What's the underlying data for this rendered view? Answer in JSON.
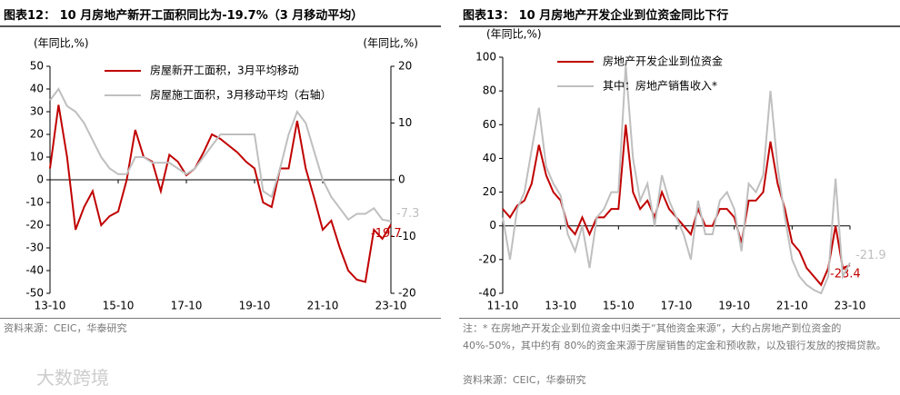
{
  "chart_data": [
    {
      "type": "line",
      "title": "图表12： 10 月房地产新开工面积同比为-19.7%（3 月移动平均）",
      "ylabel": "(年同比,%)",
      "y2label": "(年同比,%)",
      "categories": [
        "13-10",
        null,
        null,
        null,
        null,
        null,
        null,
        null,
        "15-10",
        null,
        null,
        null,
        null,
        null,
        null,
        null,
        "17-10",
        null,
        null,
        null,
        null,
        null,
        null,
        null,
        "19-10",
        null,
        null,
        null,
        null,
        null,
        null,
        null,
        "21-10",
        null,
        null,
        null,
        null,
        null,
        null,
        null,
        "23-10"
      ],
      "ylim": [
        -50,
        50
      ],
      "yticks": [
        -50,
        -40,
        -30,
        -20,
        -10,
        0,
        10,
        20,
        30,
        40,
        50
      ],
      "y2lim": [
        -20,
        20
      ],
      "y2ticks": [
        -20,
        -10,
        0,
        10,
        20
      ],
      "series": [
        {
          "name": "房屋新开工面积，3月平均移动",
          "color": "#c00000",
          "values": [
            5,
            33,
            10,
            -22,
            -12,
            -5,
            -20,
            -16,
            -14,
            0,
            22,
            10,
            8,
            -5,
            11,
            8,
            2,
            5,
            12,
            20,
            18,
            15,
            12,
            8,
            5,
            -10,
            -12,
            5,
            5,
            26,
            5,
            -8,
            -22,
            -18,
            -30,
            -40,
            -44,
            -45,
            -22,
            -26,
            -19.7
          ]
        },
        {
          "name": "房屋施工面积，3月移动平均（右轴）",
          "color": "#bfbfbf",
          "axis": "y2",
          "values": [
            14,
            16,
            13,
            12,
            10,
            7,
            4,
            2,
            1,
            1,
            4,
            4,
            3,
            3,
            3,
            2,
            1,
            2,
            4,
            6,
            8,
            8,
            8,
            8,
            8,
            -2,
            -3,
            2,
            8,
            12,
            10,
            5,
            0,
            -3,
            -5,
            -7,
            -6,
            -6,
            -5,
            -7,
            -7.3
          ]
        }
      ],
      "end_labels": true,
      "source": "资料来源：CEIC，华泰研究"
    },
    {
      "type": "line",
      "title": "图表13： 10 月房地产开发企业到位资金同比下行",
      "ylabel": "(年同比,%)",
      "categories": [
        "11-10",
        null,
        null,
        null,
        null,
        null,
        null,
        null,
        "13-10",
        null,
        null,
        null,
        null,
        null,
        null,
        null,
        "15-10",
        null,
        null,
        null,
        null,
        null,
        null,
        null,
        "17-10",
        null,
        null,
        null,
        null,
        null,
        null,
        null,
        "19-10",
        null,
        null,
        null,
        null,
        null,
        null,
        null,
        "21-10",
        null,
        null,
        null,
        null,
        null,
        null,
        null,
        "23-10"
      ],
      "ylim": [
        -40,
        100
      ],
      "yticks": [
        -40,
        -20,
        0,
        20,
        40,
        60,
        80,
        100
      ],
      "series": [
        {
          "name": "房地产开发企业到位资金",
          "color": "#c00000",
          "values": [
            10,
            5,
            12,
            15,
            25,
            48,
            30,
            20,
            15,
            0,
            -5,
            5,
            -5,
            5,
            5,
            10,
            10,
            60,
            20,
            10,
            15,
            5,
            20,
            10,
            5,
            0,
            -5,
            10,
            0,
            0,
            10,
            10,
            5,
            -10,
            15,
            15,
            20,
            50,
            25,
            10,
            -10,
            -15,
            -25,
            -30,
            -35,
            -25,
            0,
            -25,
            -23.4
          ]
        },
        {
          "name": "其中：房地产销售收入*",
          "color": "#bfbfbf",
          "values": [
            5,
            -20,
            10,
            20,
            45,
            70,
            35,
            25,
            18,
            -5,
            -15,
            0,
            -25,
            5,
            10,
            20,
            20,
            95,
            40,
            15,
            25,
            0,
            30,
            15,
            5,
            -5,
            -20,
            15,
            -5,
            -5,
            15,
            20,
            10,
            -15,
            25,
            20,
            30,
            80,
            35,
            5,
            -20,
            -30,
            -35,
            -38,
            -40,
            -30,
            28,
            -30,
            -21.9
          ]
        }
      ],
      "end_labels": true,
      "note": "注：* 在房地产开发企业到位资金中归类于“其他资金来源”，大约占房地产到位资金的 40%-50%，其中约有 80%的资金来源于房屋销售的定金和预收款，以及银行发放的按揭贷款。",
      "source": "资料来源：CEIC，华泰研究"
    }
  ],
  "watermark": "大数跨境"
}
